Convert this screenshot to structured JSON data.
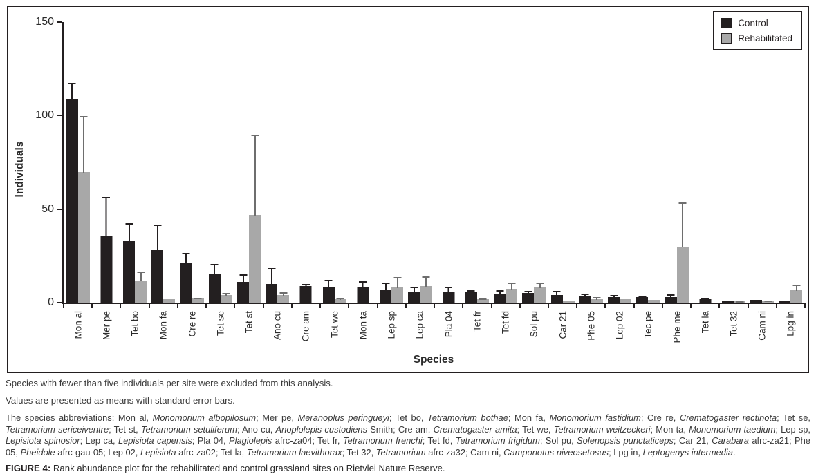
{
  "figure": {
    "chart_data": {
      "type": "bar",
      "title": "",
      "xlabel": "Species",
      "ylabel": "Individuals",
      "ylim": [
        0,
        150
      ],
      "yticks": [
        0,
        50,
        100,
        150
      ],
      "grid": false,
      "legend_position": "top-right",
      "error_bars": "upper standard error only, capped",
      "categories": [
        "Mon al",
        "Mer pe",
        "Tet bo",
        "Mon fa",
        "Cre re",
        "Tet se",
        "Tet st",
        "Ano cu",
        "Cre am",
        "Tet we",
        "Mon ta",
        "Lep sp",
        "Lep ca",
        "Pla 04",
        "Tet fr",
        "Tet fd",
        "Sol pu",
        "Car 21",
        "Phe 05",
        "Lep 02",
        "Tec pe",
        "Phe me",
        "Tet la",
        "Tet 32",
        "Cam ni",
        "Lpg in"
      ],
      "series": [
        {
          "name": "Control",
          "color": "#231f20",
          "err_color": "#231f20",
          "values": [
            109,
            36,
            33,
            28,
            21,
            15.5,
            11,
            10,
            9,
            8,
            8,
            6.5,
            6,
            6,
            5.5,
            4.5,
            5,
            4,
            3.5,
            3,
            3,
            3,
            2,
            1,
            1.4,
            1
          ],
          "errors": [
            9,
            21,
            10,
            14,
            6,
            5.5,
            4.5,
            9,
            1.5,
            4.5,
            4,
            4.5,
            3,
            3,
            1.5,
            2.5,
            1.5,
            2.5,
            1.5,
            1.5,
            1,
            1.7,
            1,
            0.2,
            0.3,
            0
          ]
        },
        {
          "name": "Rehabilitated",
          "color": "#a8a8a8",
          "err_color": "#6e6e6e",
          "values": [
            70,
            0,
            12,
            2,
            2.5,
            4,
            47,
            4,
            0,
            2,
            0,
            8,
            9,
            0,
            2,
            7.5,
            8,
            1,
            2,
            1.8,
            1.5,
            30,
            0,
            1,
            1.2,
            6.5
          ],
          "errors": [
            30,
            0,
            5,
            0,
            0.5,
            1.5,
            43,
            2,
            0,
            1,
            0,
            6,
            5.5,
            0,
            0.5,
            3.5,
            3,
            0,
            1.5,
            0,
            0,
            24,
            0,
            0.2,
            0.3,
            3.5
          ]
        }
      ]
    }
  },
  "notes": {
    "note1": "Species with fewer than five individuals per site were excluded from this analysis.",
    "note2": "Values are presented as means with standard error bars.",
    "abbreviations_segments": [
      {
        "t": "The species abbreviations: Mon al, "
      },
      {
        "t": "Monomorium albopilosum",
        "i": true
      },
      {
        "t": "; Mer pe, "
      },
      {
        "t": "Meranoplus peringueyi",
        "i": true
      },
      {
        "t": "; Tet bo, "
      },
      {
        "t": "Tetramorium bothae",
        "i": true
      },
      {
        "t": "; Mon fa, "
      },
      {
        "t": "Monomorium fastidium",
        "i": true
      },
      {
        "t": "; Cre re, "
      },
      {
        "t": "Crematogaster rectinota",
        "i": true
      },
      {
        "t": "; Tet se, "
      },
      {
        "t": "Tetramorium sericeiventre",
        "i": true
      },
      {
        "t": "; Tet st, "
      },
      {
        "t": "Tetramorium setuliferum",
        "i": true
      },
      {
        "t": "; Ano cu, "
      },
      {
        "t": "Anoplolepis custodiens",
        "i": true
      },
      {
        "t": " Smith; Cre am, "
      },
      {
        "t": "Crematogaster amita",
        "i": true
      },
      {
        "t": "; Tet we, "
      },
      {
        "t": "Tetramorium weitzeckeri",
        "i": true
      },
      {
        "t": "; Mon ta, "
      },
      {
        "t": "Monomorium taedium",
        "i": true
      },
      {
        "t": "; Lep sp, "
      },
      {
        "t": "Lepisiota spinosior",
        "i": true
      },
      {
        "t": "; Lep ca, "
      },
      {
        "t": "Lepisiota capensis",
        "i": true
      },
      {
        "t": "; Pla 04, "
      },
      {
        "t": "Plagiolepis",
        "i": true
      },
      {
        "t": " afrc-za04; Tet fr, "
      },
      {
        "t": "Tetramorium frenchi",
        "i": true
      },
      {
        "t": "; Tet fd, "
      },
      {
        "t": "Tetramorium frigidum",
        "i": true
      },
      {
        "t": "; Sol pu, "
      },
      {
        "t": "Solenopsis punctaticeps",
        "i": true
      },
      {
        "t": "; Car 21, "
      },
      {
        "t": "Carabara",
        "i": true
      },
      {
        "t": " afrc-za21; Phe 05, "
      },
      {
        "t": "Pheidole",
        "i": true
      },
      {
        "t": " afrc-gau-05; Lep 02, "
      },
      {
        "t": "Lepisiota",
        "i": true
      },
      {
        "t": " afrc-za02; Tet la, "
      },
      {
        "t": "Tetramorium laevithorax",
        "i": true
      },
      {
        "t": "; Tet 32, "
      },
      {
        "t": "Tetramorium",
        "i": true
      },
      {
        "t": " afrc-za32; Cam ni, "
      },
      {
        "t": "Camponotus niveosetosus",
        "i": true
      },
      {
        "t": "; Lpg in, "
      },
      {
        "t": "Leptogenys intermedia",
        "i": true
      },
      {
        "t": "."
      }
    ],
    "figure_caption": {
      "label": "FIGURE 4:",
      "text": " Rank abundance plot for the rehabilitated and control grassland sites on Rietvlei Nature Reserve."
    }
  }
}
